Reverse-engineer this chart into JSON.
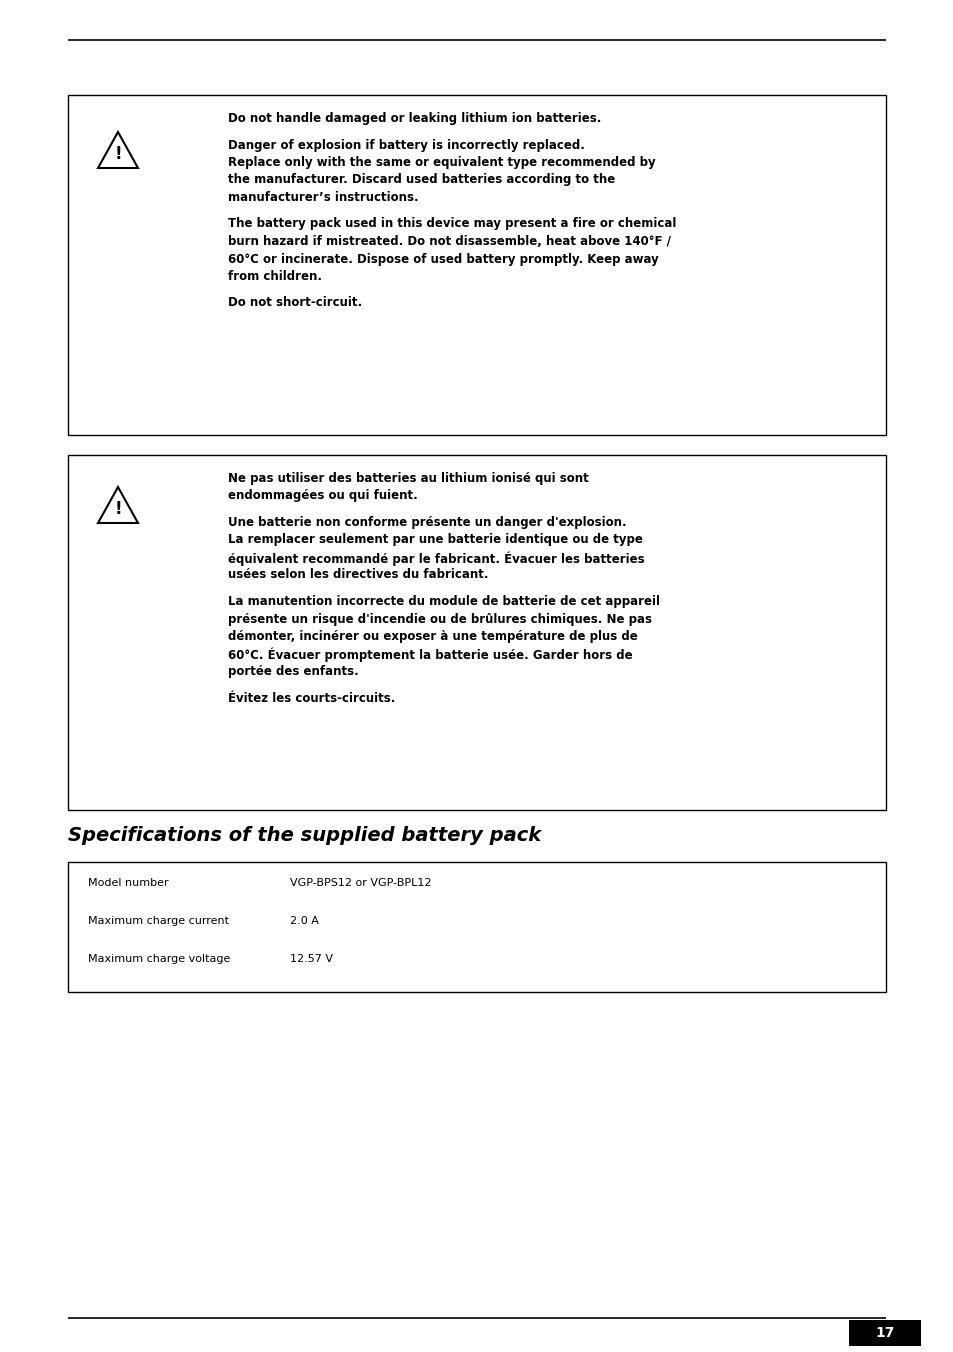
{
  "bg_color": "#ffffff",
  "text_color": "#000000",
  "page_number": "17",
  "box1_lines": [
    "Do not handle damaged or leaking lithium ion batteries.",
    "",
    "Danger of explosion if battery is incorrectly replaced.",
    "Replace only with the same or equivalent type recommended by",
    "the manufacturer. Discard used batteries according to the",
    "manufacturer’s instructions.",
    "",
    "The battery pack used in this device may present a fire or chemical",
    "burn hazard if mistreated. Do not disassemble, heat above 140°F /",
    "60°C or incinerate. Dispose of used battery promptly. Keep away",
    "from children.",
    "",
    "Do not short-circuit."
  ],
  "box2_lines": [
    "Ne pas utiliser des batteries au lithium ionisé qui sont",
    "endommagées ou qui fuient.",
    "",
    "Une batterie non conforme présente un danger d'explosion.",
    "La remplacer seulement par une batterie identique ou de type",
    "équivalent recommandé par le fabricant. Évacuer les batteries",
    "usées selon les directives du fabricant.",
    "",
    "La manutention incorrecte du module de batterie de cet appareil",
    "présente un risque d'incendie ou de brûlures chimiques. Ne pas",
    "démonter, incinérer ou exposer à une température de plus de",
    "60°C. Évacuer promptement la batterie usée. Garder hors de",
    "portée des enfants.",
    "",
    "Évitez les courts-circuits."
  ],
  "section_title": "Specifications of the supplied battery pack",
  "table_rows": [
    {
      "label": "Model number",
      "value": "VGP-BPS12 or VGP-BPL12"
    },
    {
      "label": "Maximum charge current",
      "value": "2.0 A"
    },
    {
      "label": "Maximum charge voltage",
      "value": "12.57 V"
    }
  ]
}
